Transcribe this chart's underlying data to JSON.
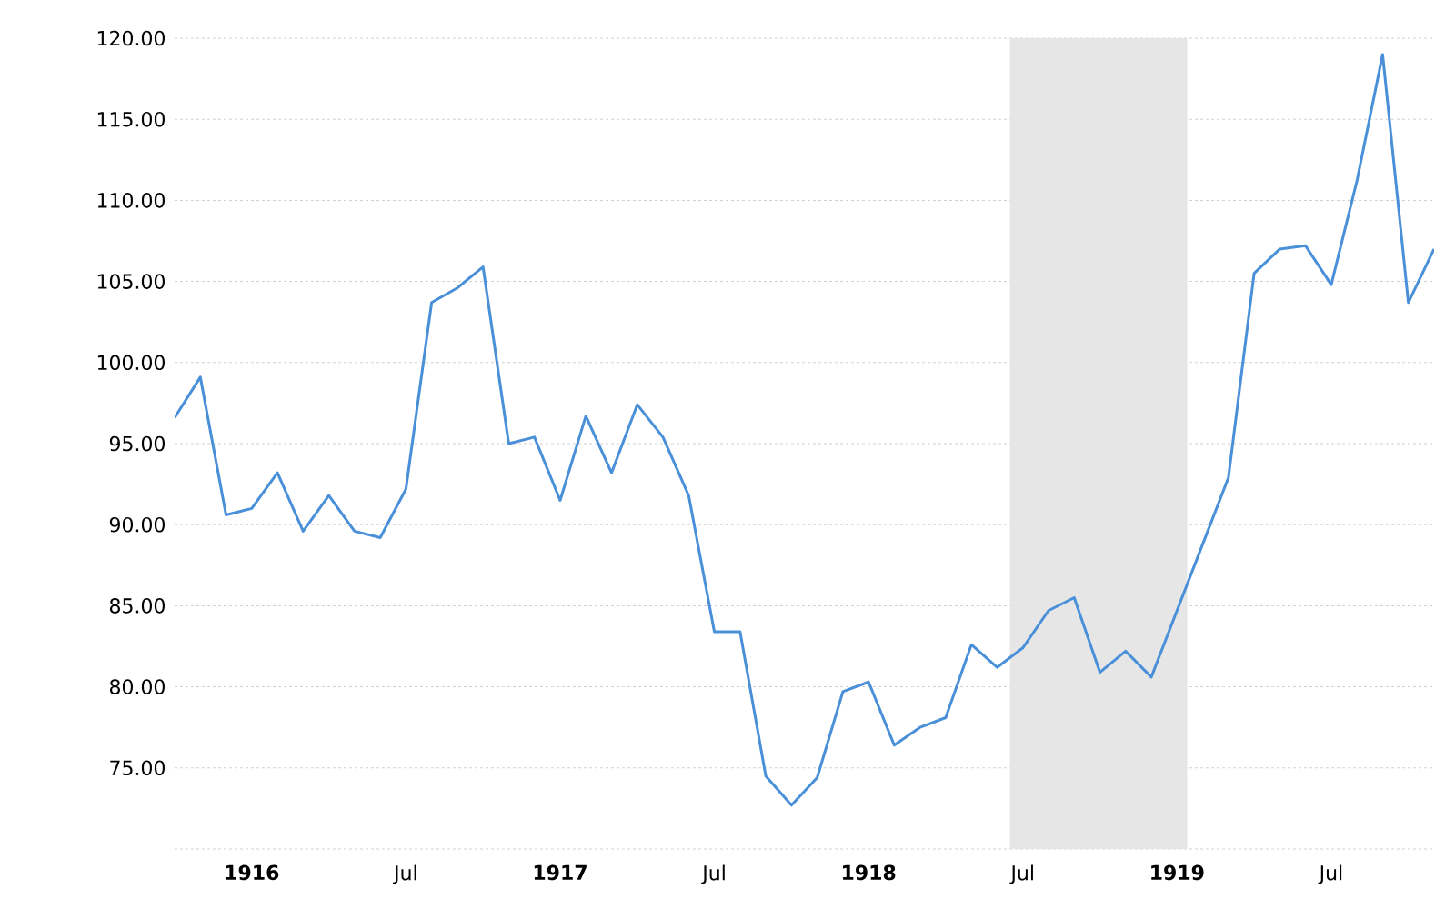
{
  "chart_data": {
    "type": "line",
    "x": [
      "1915-10",
      "1915-11",
      "1915-12",
      "1916-01",
      "1916-02",
      "1916-03",
      "1916-04",
      "1916-05",
      "1916-06",
      "1916-07",
      "1916-08",
      "1916-09",
      "1916-10",
      "1916-11",
      "1916-12",
      "1917-01",
      "1917-02",
      "1917-03",
      "1917-04",
      "1917-05",
      "1917-06",
      "1917-07",
      "1917-08",
      "1917-09",
      "1917-10",
      "1917-11",
      "1917-12",
      "1918-01",
      "1918-02",
      "1918-03",
      "1918-04",
      "1918-05",
      "1918-06",
      "1918-07",
      "1918-08",
      "1918-09",
      "1918-10",
      "1918-11",
      "1918-12",
      "1919-01",
      "1919-02",
      "1919-03",
      "1919-04",
      "1919-05",
      "1919-06",
      "1919-07",
      "1919-08",
      "1919-09",
      "1919-10",
      "1919-11"
    ],
    "series": [
      {
        "color": "#4a90d9",
        "values": [
          96.6,
          99.1,
          90.6,
          91.0,
          93.2,
          89.6,
          91.8,
          89.6,
          89.2,
          92.2,
          103.7,
          104.6,
          105.9,
          95.0,
          95.4,
          91.5,
          96.7,
          93.2,
          97.4,
          95.4,
          91.8,
          83.4,
          83.4,
          74.5,
          72.7,
          74.4,
          79.7,
          80.3,
          76.4,
          77.5,
          78.1,
          82.6,
          81.2,
          82.4,
          84.7,
          85.5,
          80.9,
          82.2,
          80.6,
          84.7,
          88.8,
          92.9,
          105.5,
          107.0,
          107.2,
          104.8,
          111.2,
          119.0,
          103.7,
          107.0
        ]
      }
    ],
    "xlim": [
      "1915-10",
      "1919-11"
    ],
    "xticks": [
      {
        "value": "1916-01",
        "label": "1916"
      },
      {
        "value": "1916-07",
        "label": "Jul"
      },
      {
        "value": "1917-01",
        "label": "1917"
      },
      {
        "value": "1917-07",
        "label": "Jul"
      },
      {
        "value": "1918-01",
        "label": "1918"
      },
      {
        "value": "1918-07",
        "label": "Jul"
      },
      {
        "value": "1919-01",
        "label": "1919"
      },
      {
        "value": "1919-07",
        "label": "Jul"
      }
    ],
    "ylim": [
      70,
      120
    ],
    "yticks": [
      {
        "value": 70,
        "label": null
      },
      {
        "value": 75,
        "label": "75.00"
      },
      {
        "value": 80,
        "label": "80.00"
      },
      {
        "value": 85,
        "label": "85.00"
      },
      {
        "value": 90,
        "label": "90.00"
      },
      {
        "value": 95,
        "label": "95.00"
      },
      {
        "value": 100,
        "label": "100.00"
      },
      {
        "value": 105,
        "label": "105.00"
      },
      {
        "value": 110,
        "label": "110.00"
      },
      {
        "value": 115,
        "label": "115.00"
      },
      {
        "value": 120,
        "label": "120.00"
      }
    ],
    "bands": [
      {
        "axis": "x",
        "from": "1918-06-16",
        "to": "1919-01-13",
        "color": "#e6e6e6"
      }
    ],
    "grid": "y",
    "marker": "none"
  }
}
